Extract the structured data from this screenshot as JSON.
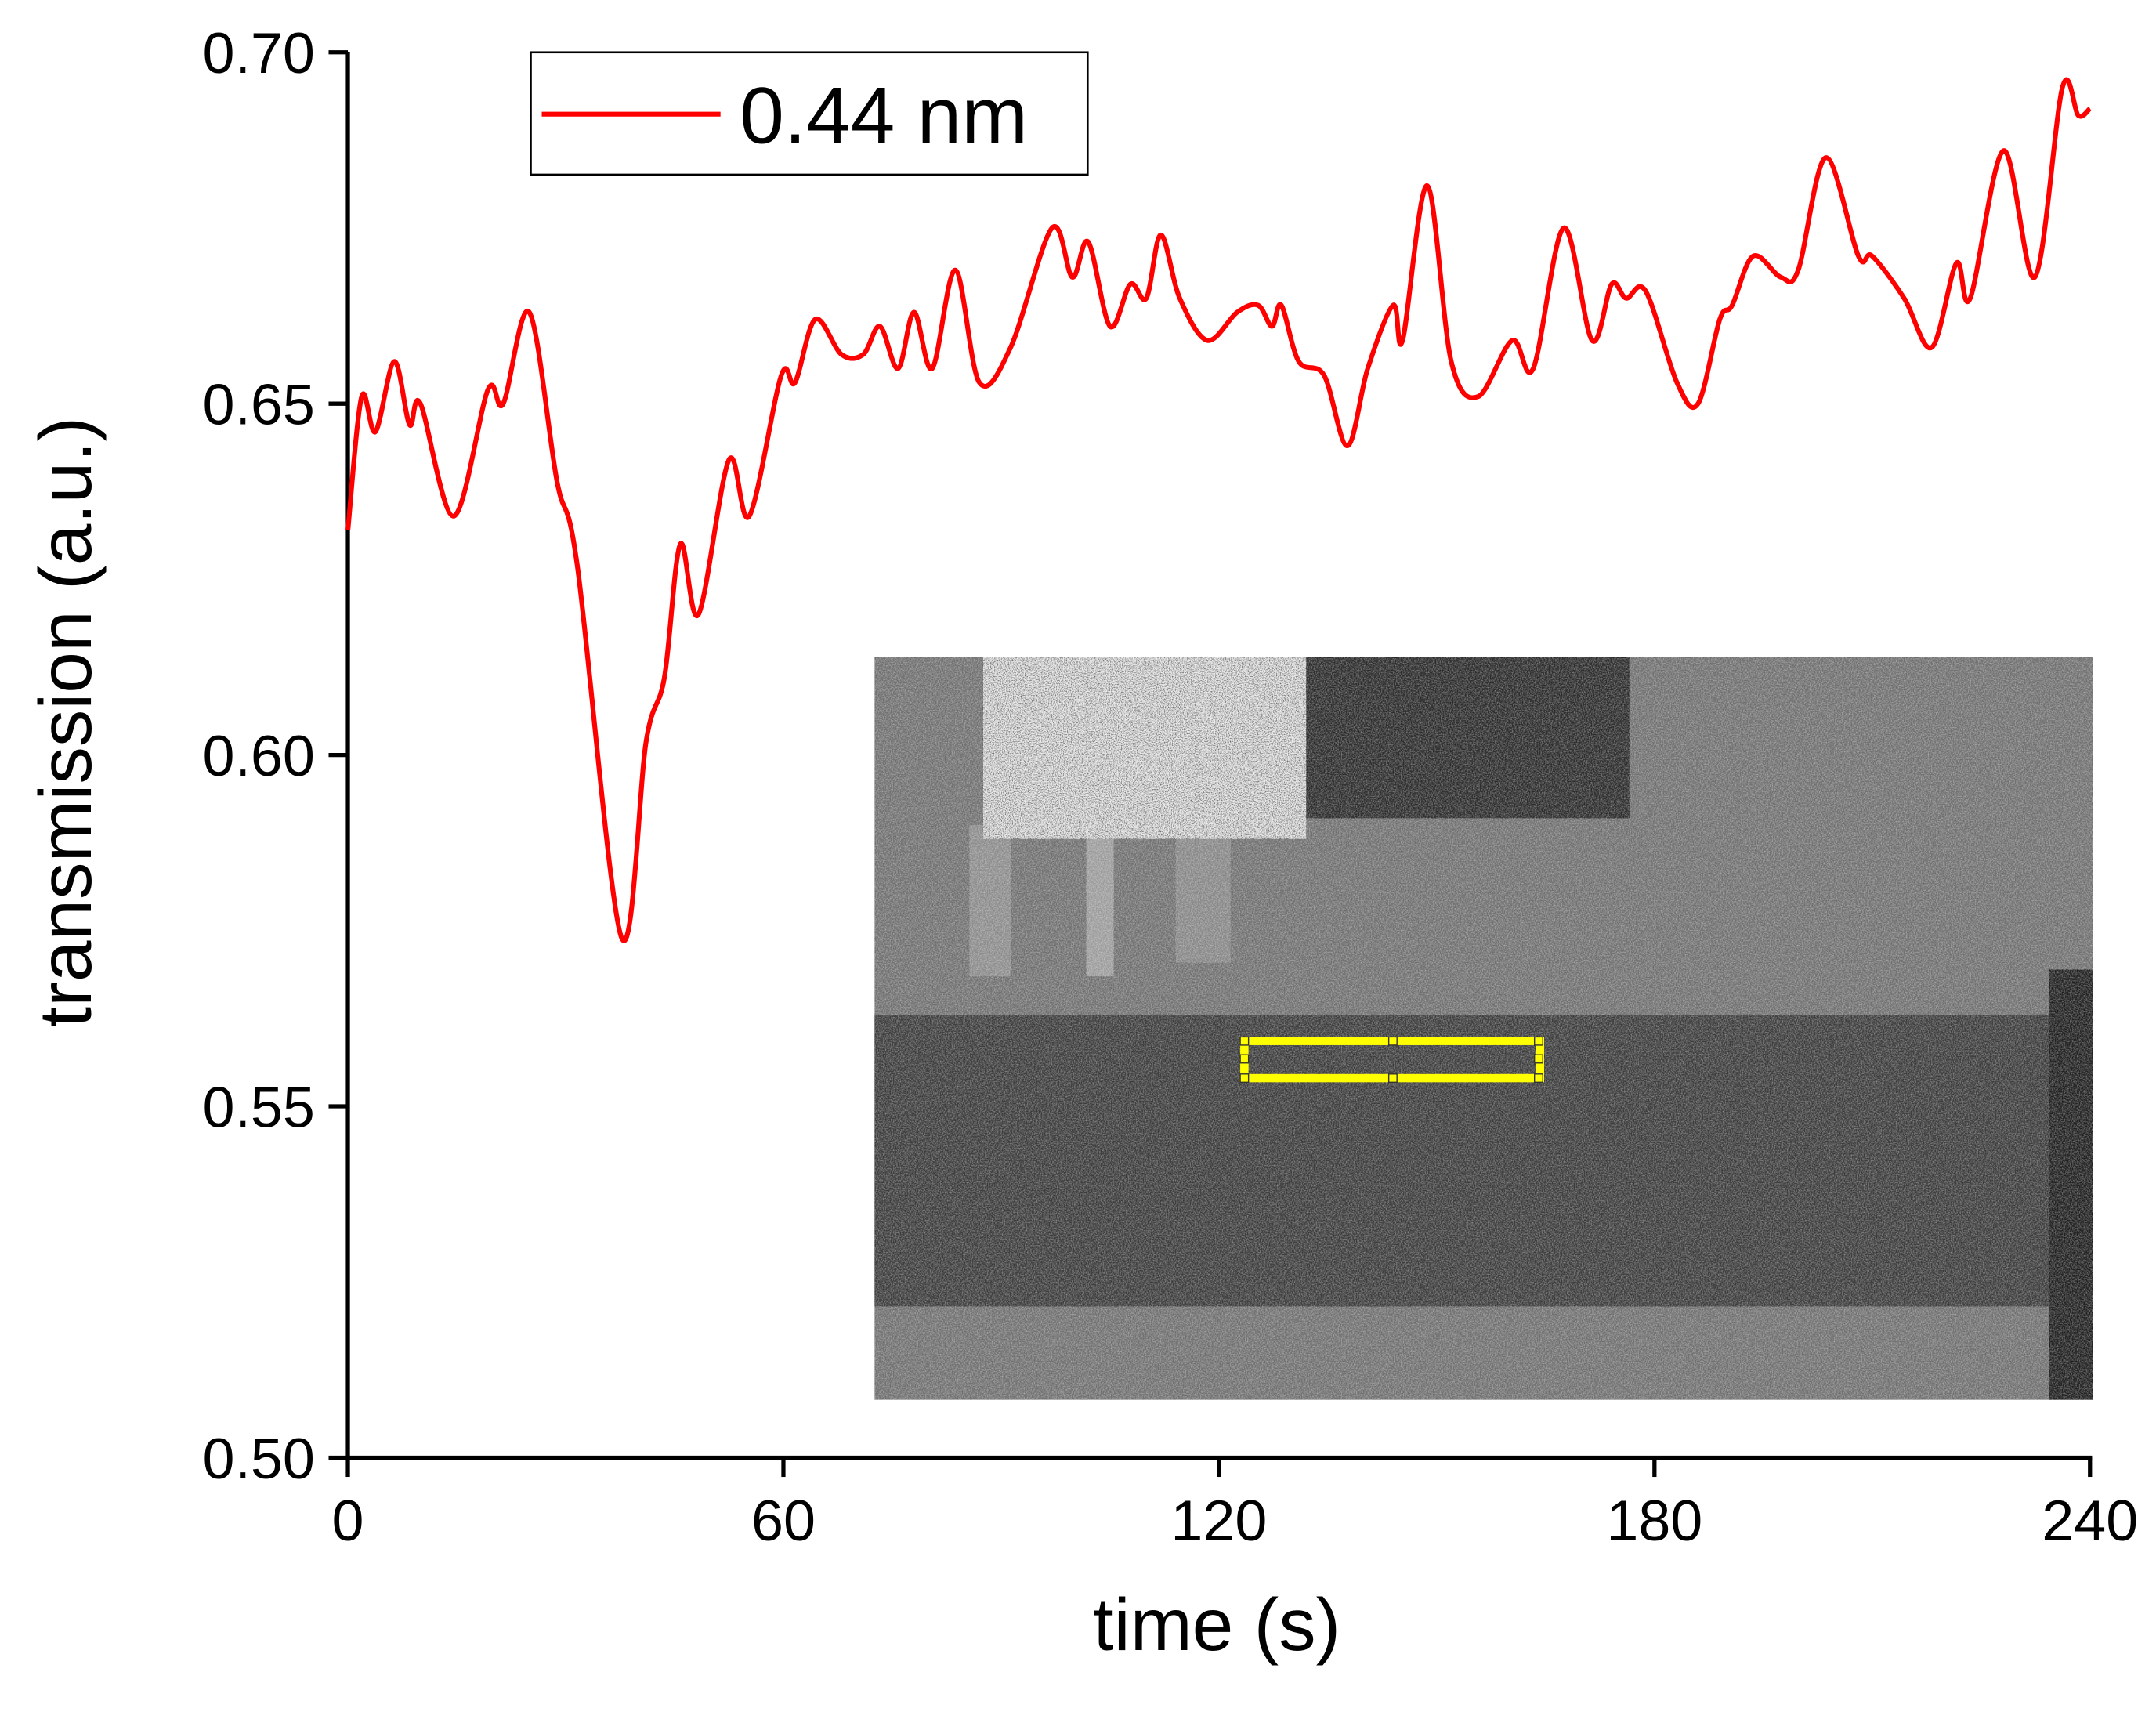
{
  "chart_data": {
    "type": "line",
    "xlabel": "time (s)",
    "ylabel": "transmission (a.u.)",
    "xlim": [
      0,
      240
    ],
    "ylim": [
      0.5,
      0.7
    ],
    "xticks": [
      0,
      60,
      120,
      180,
      240
    ],
    "yticks": [
      {
        "value": 0.5,
        "label": "0.50"
      },
      0.55,
      {
        "value": 0.6,
        "label": "0.60"
      },
      0.65,
      {
        "value": 0.7,
        "label": "0.70"
      }
    ],
    "legend": "upper left",
    "series": [
      {
        "name": "0.44 nm",
        "color": "#ff0000",
        "x": [
          0,
          1.9,
          3.8,
          6.4,
          8.5,
          10,
          14.6,
          19.3,
          21.4,
          25,
          28.8,
          31.6,
          37.7,
          41.1,
          43.6,
          45.8,
          48.3,
          52.5,
          55.3,
          59.7,
          61.6,
          64.4,
          68,
          71,
          73.3,
          75.8,
          78,
          80.5,
          83.7,
          87,
          91.3,
          97,
          99.8,
          102,
          105,
          107.8,
          110,
          112,
          114.6,
          118.4,
          122.5,
          125.4,
          127.3,
          128.6,
          131,
          134.5,
          137.7,
          140.5,
          144,
          145.3,
          148.7,
          152,
          155.7,
          160.4,
          163.3,
          167.5,
          171.4,
          174.1,
          176.1,
          178.8,
          183.1,
          186,
          189,
          190.7,
          193.6,
          197.4,
          199.8,
          203.6,
          208.1,
          210,
          214.4,
          218.2,
          221.6,
          223.5,
          228.1,
          232.4,
          236.2,
          238.4,
          240
        ],
        "values": [
          0.632,
          0.651,
          0.646,
          0.656,
          0.647,
          0.65,
          0.634,
          0.652,
          0.65,
          0.663,
          0.639,
          0.627,
          0.574,
          0.602,
          0.611,
          0.63,
          0.62,
          0.642,
          0.634,
          0.654,
          0.653,
          0.662,
          0.657,
          0.657,
          0.661,
          0.655,
          0.663,
          0.655,
          0.669,
          0.653,
          0.658,
          0.675,
          0.668,
          0.673,
          0.661,
          0.667,
          0.665,
          0.674,
          0.665,
          0.659,
          0.663,
          0.664,
          0.661,
          0.664,
          0.656,
          0.654,
          0.644,
          0.655,
          0.664,
          0.659,
          0.681,
          0.656,
          0.651,
          0.659,
          0.655,
          0.675,
          0.659,
          0.667,
          0.665,
          0.666,
          0.653,
          0.65,
          0.662,
          0.664,
          0.671,
          0.668,
          0.669,
          0.685,
          0.671,
          0.671,
          0.665,
          0.658,
          0.67,
          0.665,
          0.686,
          0.668,
          0.695,
          0.691,
          0.692
        ]
      }
    ]
  }
}
